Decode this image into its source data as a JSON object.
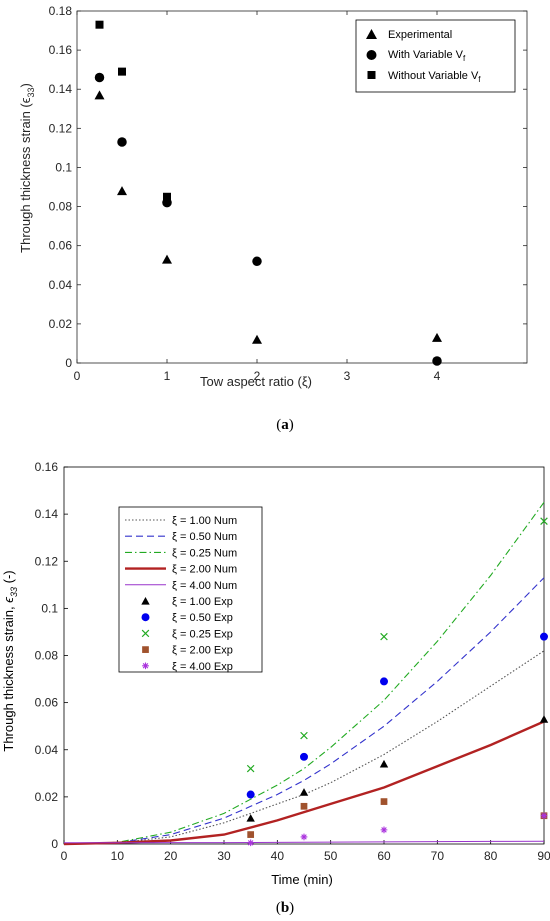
{
  "chart_data": [
    {
      "type": "scatter",
      "caption": {
        "open": "(",
        "letter": "a",
        "close": ")"
      },
      "xlabel": "Tow aspect ratio (ξ)",
      "ylabel": "Through thickness strain (ϵ",
      "ylabel_sub": "33",
      "ylabel_end": ")",
      "xlim": [
        0,
        5
      ],
      "ylim": [
        0,
        0.18
      ],
      "xticks": [
        0,
        1,
        2,
        3,
        4
      ],
      "yticks": [
        0,
        0.02,
        0.04,
        0.06,
        0.08,
        0.1,
        0.12,
        0.14,
        0.16,
        0.18
      ],
      "ytick_labels": [
        "0",
        "0.02",
        "0.04",
        "0.06",
        "0.08",
        "0.1",
        "0.12",
        "0.14",
        "0.16",
        "0.18"
      ],
      "grid": false,
      "legend_position": "top-right",
      "series": [
        {
          "name": "Experimental",
          "marker": "triangle",
          "color": "#000000",
          "x": [
            0.25,
            0.5,
            1,
            2,
            4
          ],
          "y": [
            0.137,
            0.088,
            0.053,
            0.012,
            0.013
          ]
        },
        {
          "name": "With Variable V",
          "name_sub": "f",
          "marker": "circle",
          "color": "#000000",
          "x": [
            0.25,
            0.5,
            1,
            2,
            4
          ],
          "y": [
            0.146,
            0.113,
            0.082,
            0.052,
            0.001
          ]
        },
        {
          "name": "Without Variable V",
          "name_sub": "f",
          "marker": "square",
          "color": "#000000",
          "x": [
            0.25,
            0.5,
            1
          ],
          "y": [
            0.173,
            0.149,
            0.085
          ]
        }
      ]
    },
    {
      "type": "line",
      "caption": {
        "open": "(",
        "letter": "b",
        "close": ")"
      },
      "xlabel": "Time (min)",
      "ylabel": "Through thickness strain,  ",
      "ylabel_sym": "ϵ",
      "ylabel_sub": "33",
      "ylabel_end": " (-)",
      "xlim": [
        0,
        90
      ],
      "ylim": [
        0,
        0.16
      ],
      "xticks": [
        0,
        10,
        20,
        30,
        40,
        50,
        60,
        70,
        80,
        90
      ],
      "yticks": [
        0,
        0.02,
        0.04,
        0.06,
        0.08,
        0.1,
        0.12,
        0.14,
        0.16
      ],
      "ytick_labels": [
        "0",
        "0.02",
        "0.04",
        "0.06",
        "0.08",
        "0.1",
        "0.12",
        "0.14",
        "0.16"
      ],
      "grid": false,
      "legend_position": "top-left",
      "series": [
        {
          "name": "ξ = 1.00 Num",
          "kind": "line",
          "style": "dotted",
          "color": "#555555",
          "x": [
            0,
            10,
            20,
            30,
            35,
            40,
            45,
            50,
            60,
            70,
            80,
            90
          ],
          "y": [
            0,
            0.0005,
            0.003,
            0.009,
            0.013,
            0.017,
            0.021,
            0.026,
            0.038,
            0.052,
            0.067,
            0.082
          ]
        },
        {
          "name": "ξ = 0.50 Num",
          "kind": "line",
          "style": "dashed",
          "color": "#3333cc",
          "x": [
            0,
            10,
            20,
            30,
            35,
            40,
            45,
            50,
            60,
            70,
            80,
            90
          ],
          "y": [
            0,
            0.0005,
            0.004,
            0.011,
            0.016,
            0.021,
            0.027,
            0.034,
            0.05,
            0.069,
            0.09,
            0.113
          ]
        },
        {
          "name": "ξ = 0.25 Num",
          "kind": "line",
          "style": "dashdot",
          "color": "#22aa22",
          "x": [
            0,
            10,
            20,
            30,
            35,
            40,
            45,
            50,
            60,
            70,
            80,
            90
          ],
          "y": [
            0,
            0.0007,
            0.005,
            0.013,
            0.019,
            0.025,
            0.032,
            0.041,
            0.061,
            0.086,
            0.114,
            0.145
          ]
        },
        {
          "name": "ξ = 2.00 Num",
          "kind": "line",
          "style": "solid-thick",
          "color": "#b22222",
          "x": [
            0,
            10,
            20,
            30,
            40,
            50,
            60,
            70,
            80,
            90
          ],
          "y": [
            0,
            0.0005,
            0.0015,
            0.004,
            0.01,
            0.017,
            0.024,
            0.033,
            0.042,
            0.052
          ]
        },
        {
          "name": "ξ = 4.00 Num",
          "kind": "line",
          "style": "solid",
          "color": "#9933cc",
          "x": [
            0,
            10,
            20,
            30,
            40,
            50,
            60,
            70,
            80,
            90
          ],
          "y": [
            0.0005,
            0.0005,
            0.0006,
            0.0006,
            0.0007,
            0.0008,
            0.0009,
            0.001,
            0.0011,
            0.0012
          ]
        },
        {
          "name": "ξ = 1.00 Exp",
          "kind": "points",
          "marker": "triangle",
          "color": "#000000",
          "x": [
            35,
            45,
            60,
            90
          ],
          "y": [
            0.011,
            0.022,
            0.034,
            0.053
          ]
        },
        {
          "name": "ξ = 0.50 Exp",
          "kind": "points",
          "marker": "circle",
          "color": "#0000ee",
          "x": [
            35,
            45,
            60,
            90
          ],
          "y": [
            0.021,
            0.037,
            0.069,
            0.088
          ]
        },
        {
          "name": "ξ = 0.25 Exp",
          "kind": "points",
          "marker": "x",
          "color": "#22aa22",
          "x": [
            35,
            45,
            60,
            90
          ],
          "y": [
            0.032,
            0.046,
            0.088,
            0.137
          ]
        },
        {
          "name": "ξ = 2.00 Exp",
          "kind": "points",
          "marker": "square",
          "color": "#a0522d",
          "x": [
            35,
            45,
            60,
            90
          ],
          "y": [
            0.004,
            0.016,
            0.018,
            0.012
          ]
        },
        {
          "name": "ξ = 4.00 Exp",
          "kind": "points",
          "marker": "asterisk",
          "color": "#aa33dd",
          "x": [
            35,
            45,
            60,
            90
          ],
          "y": [
            0.0005,
            0.003,
            0.006,
            0.012
          ]
        }
      ]
    }
  ]
}
